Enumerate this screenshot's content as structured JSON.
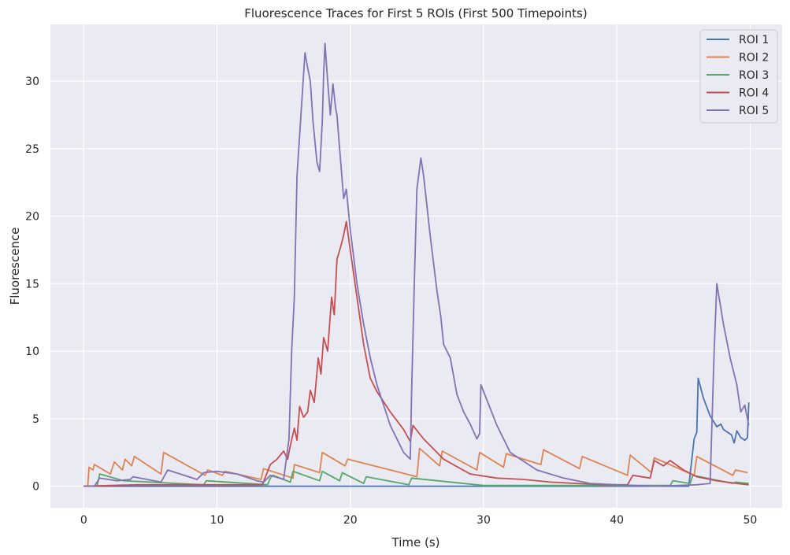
{
  "chart_data": {
    "type": "line",
    "title": "Fluorescence Traces for First 5 ROIs (First 500 Timepoints)",
    "xlabel": "Time (s)",
    "ylabel": "Fluorescence",
    "xlim": [
      -2.5,
      52.4
    ],
    "ylim": [
      -1.6,
      34.2
    ],
    "xticks": [
      0,
      10,
      20,
      30,
      40,
      50
    ],
    "yticks": [
      0,
      5,
      10,
      15,
      20,
      25,
      30
    ],
    "xtick_labels": [
      "0",
      "10",
      "20",
      "30",
      "40",
      "50"
    ],
    "ytick_labels": [
      "0",
      "5",
      "10",
      "15",
      "20",
      "25",
      "30"
    ],
    "grid": true,
    "background": "#eaeaf2",
    "legend_position": "top-right",
    "series": [
      {
        "name": "ROI 1",
        "color": "#4c72b0",
        "x": [
          0,
          45.4,
          45.8,
          46.0,
          46.1,
          46.5,
          47.0,
          47.5,
          47.8,
          48.0,
          48.3,
          48.6,
          48.8,
          49.0,
          49.3,
          49.6,
          49.8,
          49.9
        ],
        "y": [
          0,
          0,
          3.5,
          4.0,
          8.0,
          6.5,
          5.2,
          4.4,
          4.6,
          4.2,
          4.0,
          3.8,
          3.2,
          4.1,
          3.6,
          3.4,
          3.6,
          6.2
        ]
      },
      {
        "name": "ROI 2",
        "color": "#dd8452",
        "x": [
          0,
          0.3,
          0.4,
          0.7,
          0.8,
          2.0,
          2.3,
          2.9,
          3.1,
          3.6,
          3.8,
          5.8,
          6.0,
          9.1,
          9.3,
          10.4,
          10.6,
          13.3,
          13.5,
          15.7,
          15.8,
          17.7,
          17.9,
          19.6,
          19.8,
          25.0,
          25.2,
          26.7,
          26.9,
          29.5,
          29.7,
          31.5,
          31.7,
          34.3,
          34.5,
          37.2,
          37.4,
          40.8,
          41.0,
          42.6,
          42.8,
          45.8,
          46.0,
          48.7,
          48.9,
          49.8
        ],
        "y": [
          0,
          0,
          1.4,
          1.2,
          1.6,
          0.9,
          1.8,
          1.2,
          2.0,
          1.5,
          2.2,
          0.9,
          2.5,
          0.8,
          1.2,
          0.8,
          1.1,
          0.5,
          1.3,
          0.6,
          1.6,
          1.0,
          2.5,
          1.5,
          2.0,
          0.7,
          2.8,
          1.5,
          2.6,
          1.2,
          2.5,
          1.4,
          2.4,
          1.6,
          2.7,
          1.3,
          2.2,
          0.8,
          2.3,
          1.0,
          2.1,
          0.8,
          2.2,
          0.8,
          1.2,
          1.0
        ]
      },
      {
        "name": "ROI 3",
        "color": "#55a868",
        "x": [
          0,
          1.0,
          1.2,
          3.0,
          9.0,
          9.2,
          13.8,
          14.0,
          14.2,
          15.5,
          15.7,
          17.7,
          17.9,
          19.2,
          19.4,
          21.0,
          21.2,
          24.4,
          24.6,
          30.0,
          44.0,
          44.2,
          45.5,
          45.7,
          48.7,
          48.9,
          49.9
        ],
        "y": [
          0,
          0,
          0.9,
          0.4,
          0.1,
          0.4,
          0.1,
          0.6,
          0.8,
          0.3,
          1.1,
          0.4,
          1.1,
          0.4,
          1.0,
          0.2,
          0.7,
          0.1,
          0.6,
          0.05,
          0.05,
          0.4,
          0.2,
          0.8,
          0.2,
          0.3,
          0.2
        ]
      },
      {
        "name": "ROI 4",
        "color": "#c44e52",
        "x": [
          0,
          4.0,
          13.4,
          14.0,
          14.5,
          15.0,
          15.3,
          15.5,
          15.8,
          16.0,
          16.2,
          16.5,
          16.8,
          17.0,
          17.3,
          17.6,
          17.8,
          18.0,
          18.3,
          18.6,
          18.8,
          19.0,
          19.3,
          19.5,
          19.7,
          20.0,
          20.5,
          21.0,
          21.5,
          22.0,
          23.0,
          24.0,
          24.5,
          24.7,
          25.5,
          27.0,
          29.0,
          31.0,
          33.0,
          35.0,
          37.0,
          39.0,
          40.8,
          41.2,
          42.5,
          42.8,
          43.5,
          44.0,
          45.0,
          46.0,
          47.5,
          49.0,
          49.9
        ],
        "y": [
          0,
          0.1,
          0.1,
          1.6,
          2.0,
          2.6,
          2.0,
          3.0,
          4.3,
          3.4,
          5.9,
          5.1,
          5.5,
          7.1,
          6.2,
          9.5,
          8.3,
          11.0,
          10.0,
          14.0,
          12.7,
          16.8,
          17.8,
          18.6,
          19.6,
          17.5,
          14.0,
          10.5,
          8.0,
          7.0,
          5.5,
          4.2,
          3.3,
          4.5,
          3.5,
          2.0,
          0.9,
          0.6,
          0.5,
          0.3,
          0.2,
          0.1,
          0.1,
          0.8,
          0.6,
          1.9,
          1.5,
          1.9,
          1.2,
          0.7,
          0.4,
          0.2,
          0.1
        ]
      },
      {
        "name": "ROI 5",
        "color": "#8172b3",
        "x": [
          0,
          0.8,
          1.2,
          2.5,
          3.5,
          3.7,
          5.8,
          6.3,
          8.5,
          9.0,
          10.0,
          11.5,
          13.0,
          13.5,
          14.0,
          15.0,
          15.4,
          15.6,
          15.8,
          16.0,
          16.3,
          16.6,
          16.8,
          17.0,
          17.2,
          17.5,
          17.7,
          17.9,
          18.0,
          18.1,
          18.3,
          18.5,
          18.7,
          18.9,
          19.0,
          19.2,
          19.5,
          19.7,
          20.0,
          20.5,
          21.0,
          21.5,
          22.0,
          23.0,
          24.0,
          24.5,
          24.6,
          24.8,
          25.0,
          25.3,
          25.5,
          26.0,
          26.5,
          26.8,
          27.0,
          27.5,
          28.0,
          28.5,
          29.0,
          29.5,
          29.7,
          29.8,
          30.0,
          31.0,
          32.0,
          34.0,
          36.0,
          38.0,
          40.0,
          43.0,
          46.0,
          47.0,
          47.3,
          47.5,
          48.0,
          48.5,
          49.0,
          49.3,
          49.6,
          49.9
        ],
        "y": [
          0,
          0,
          0.6,
          0.4,
          0.5,
          0.7,
          0.3,
          1.2,
          0.5,
          1.0,
          1.1,
          0.9,
          0.4,
          0.3,
          0.8,
          0.5,
          3.5,
          10.0,
          14.0,
          23.0,
          27.5,
          32.1,
          31.0,
          30.0,
          27.0,
          24.0,
          23.3,
          27.0,
          30.5,
          32.8,
          30.0,
          27.5,
          29.8,
          28.0,
          27.5,
          25.0,
          21.3,
          22.0,
          19.0,
          15.0,
          12.0,
          9.5,
          7.5,
          4.5,
          2.5,
          2.0,
          7.0,
          15.0,
          22.0,
          24.3,
          23.0,
          18.5,
          14.5,
          12.5,
          10.5,
          9.5,
          6.8,
          5.5,
          4.6,
          3.5,
          3.9,
          7.5,
          7.0,
          4.5,
          2.5,
          1.2,
          0.6,
          0.2,
          0.1,
          0.0,
          0.1,
          0.2,
          10.0,
          15.0,
          12.0,
          9.5,
          7.5,
          5.5,
          6.0,
          4.5
        ]
      }
    ]
  }
}
